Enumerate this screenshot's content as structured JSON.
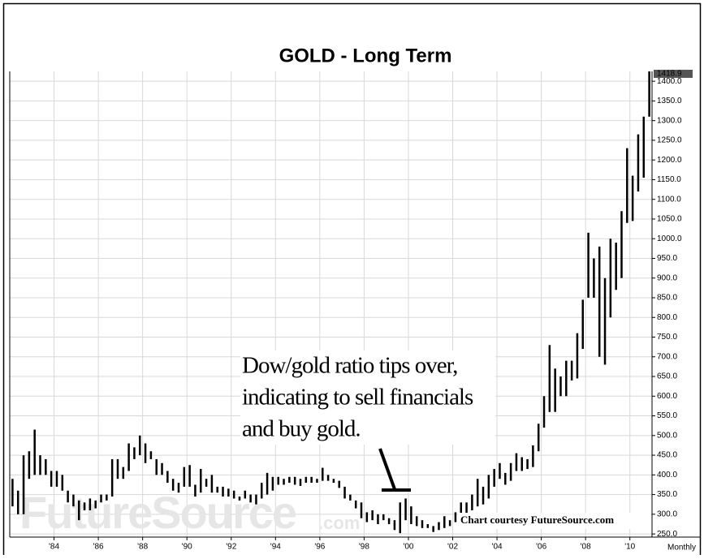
{
  "chart_data": {
    "type": "ohlc",
    "title": "GOLD  -  Long Term",
    "annotation": [
      "Dow/gold ratio tips over,",
      "indicating to sell financials",
      "and buy gold."
    ],
    "credit": "Chart courtesy FutureSource.com",
    "watermark": {
      "main": "FutureSource",
      "suffix": ".com"
    },
    "period_label": "Monthly",
    "last_price": {
      "value": 1418.9,
      "label": "1418.9"
    },
    "color": "#000000",
    "grid": true,
    "xlim": [
      1982,
      2011
    ],
    "ylim": [
      242,
      1425
    ],
    "xticks": [
      {
        "value": 1984,
        "label": "'84"
      },
      {
        "value": 1986,
        "label": "'86"
      },
      {
        "value": 1988,
        "label": "'88"
      },
      {
        "value": 1990,
        "label": "'90"
      },
      {
        "value": 1992,
        "label": "'92"
      },
      {
        "value": 1994,
        "label": "'94"
      },
      {
        "value": 1996,
        "label": "'96"
      },
      {
        "value": 1998,
        "label": "'98"
      },
      {
        "value": 2000,
        "label": "'00"
      },
      {
        "value": 2002,
        "label": "'02"
      },
      {
        "value": 2004,
        "label": "'04"
      },
      {
        "value": 2006,
        "label": "'06"
      },
      {
        "value": 2008,
        "label": "'08"
      },
      {
        "value": 2010,
        "label": "'10"
      }
    ],
    "yticks": [
      {
        "value": 250,
        "label": "250.0"
      },
      {
        "value": 300,
        "label": "300.0"
      },
      {
        "value": 350,
        "label": "350.0"
      },
      {
        "value": 400,
        "label": "400.0"
      },
      {
        "value": 450,
        "label": "450.0"
      },
      {
        "value": 500,
        "label": "500.0"
      },
      {
        "value": 550,
        "label": "550.0"
      },
      {
        "value": 600,
        "label": "600.0"
      },
      {
        "value": 650,
        "label": "650.0"
      },
      {
        "value": 700,
        "label": "700.0"
      },
      {
        "value": 750,
        "label": "750.0"
      },
      {
        "value": 800,
        "label": "800.0"
      },
      {
        "value": 850,
        "label": "850.0"
      },
      {
        "value": 900,
        "label": "900.0"
      },
      {
        "value": 950,
        "label": "950.0"
      },
      {
        "value": 1000,
        "label": "1000.0"
      },
      {
        "value": 1050,
        "label": "1050.0"
      },
      {
        "value": 1100,
        "label": "1100.0"
      },
      {
        "value": 1150,
        "label": "1150.0"
      },
      {
        "value": 1200,
        "label": "1200.0"
      },
      {
        "value": 1250,
        "label": "1250.0"
      },
      {
        "value": 1300,
        "label": "1300.0"
      },
      {
        "value": 1350,
        "label": "1350.0"
      },
      {
        "value": 1400,
        "label": "1400.0"
      }
    ],
    "x": [
      1982.125,
      1982.375,
      1982.625,
      1982.875,
      1983.125,
      1983.375,
      1983.625,
      1983.875,
      1984.125,
      1984.375,
      1984.625,
      1984.875,
      1985.125,
      1985.375,
      1985.625,
      1985.875,
      1986.125,
      1986.375,
      1986.625,
      1986.875,
      1987.125,
      1987.375,
      1987.625,
      1987.875,
      1988.125,
      1988.375,
      1988.625,
      1988.875,
      1989.125,
      1989.375,
      1989.625,
      1989.875,
      1990.125,
      1990.375,
      1990.625,
      1990.875,
      1991.125,
      1991.375,
      1991.625,
      1991.875,
      1992.125,
      1992.375,
      1992.625,
      1992.875,
      1993.125,
      1993.375,
      1993.625,
      1993.875,
      1994.125,
      1994.375,
      1994.625,
      1994.875,
      1995.125,
      1995.375,
      1995.625,
      1995.875,
      1996.125,
      1996.375,
      1996.625,
      1996.875,
      1997.125,
      1997.375,
      1997.625,
      1997.875,
      1998.125,
      1998.375,
      1998.625,
      1998.875,
      1999.125,
      1999.375,
      1999.625,
      1999.875,
      2000.125,
      2000.375,
      2000.625,
      2000.875,
      2001.125,
      2001.375,
      2001.625,
      2001.875,
      2002.125,
      2002.375,
      2002.625,
      2002.875,
      2003.125,
      2003.375,
      2003.625,
      2003.875,
      2004.125,
      2004.375,
      2004.625,
      2004.875,
      2005.125,
      2005.375,
      2005.625,
      2005.875,
      2006.125,
      2006.375,
      2006.625,
      2006.875,
      2007.125,
      2007.375,
      2007.625,
      2007.875,
      2008.125,
      2008.375,
      2008.625,
      2008.875,
      2009.125,
      2009.375,
      2009.625,
      2009.875,
      2010.125,
      2010.375,
      2010.625,
      2010.875
    ],
    "high": [
      390,
      360,
      450,
      460,
      515,
      450,
      440,
      410,
      410,
      400,
      360,
      350,
      335,
      330,
      340,
      335,
      350,
      350,
      440,
      440,
      420,
      480,
      470,
      500,
      480,
      460,
      440,
      430,
      410,
      390,
      380,
      420,
      425,
      375,
      415,
      390,
      400,
      370,
      370,
      365,
      360,
      345,
      360,
      350,
      350,
      380,
      405,
      395,
      395,
      390,
      395,
      395,
      390,
      395,
      395,
      390,
      418,
      400,
      390,
      385,
      370,
      350,
      335,
      330,
      305,
      310,
      300,
      300,
      290,
      285,
      330,
      340,
      320,
      295,
      285,
      275,
      270,
      280,
      295,
      285,
      305,
      330,
      330,
      350,
      390,
      370,
      400,
      415,
      430,
      405,
      430,
      455,
      445,
      440,
      475,
      530,
      600,
      730,
      670,
      650,
      690,
      690,
      760,
      845,
      1015,
      950,
      980,
      900,
      1000,
      990,
      1070,
      1230,
      1160,
      1265,
      1310,
      1425
    ],
    "low": [
      320,
      300,
      300,
      390,
      400,
      400,
      400,
      370,
      370,
      360,
      330,
      320,
      285,
      310,
      310,
      315,
      330,
      335,
      345,
      390,
      390,
      410,
      440,
      450,
      430,
      440,
      400,
      400,
      380,
      360,
      355,
      370,
      370,
      345,
      355,
      370,
      355,
      355,
      345,
      345,
      340,
      335,
      340,
      330,
      325,
      340,
      350,
      360,
      375,
      375,
      380,
      375,
      372,
      380,
      380,
      380,
      385,
      385,
      380,
      367,
      340,
      335,
      315,
      290,
      280,
      285,
      275,
      285,
      275,
      260,
      252,
      285,
      275,
      270,
      265,
      265,
      255,
      260,
      265,
      270,
      280,
      300,
      300,
      310,
      320,
      325,
      340,
      370,
      390,
      375,
      385,
      410,
      410,
      415,
      420,
      460,
      520,
      560,
      560,
      600,
      600,
      640,
      645,
      720,
      850,
      850,
      700,
      680,
      800,
      870,
      900,
      1040,
      1045,
      1120,
      1155,
      1310
    ]
  }
}
